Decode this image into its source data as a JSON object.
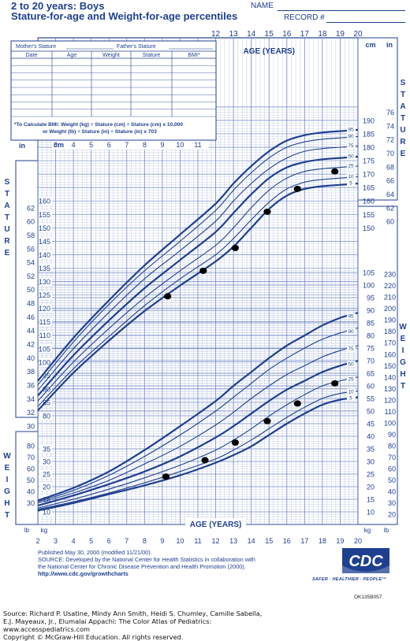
{
  "header": {
    "title_line1": "2 to 20 years: Boys",
    "title_line2": "Stature-for-age and Weight-for-age percentiles",
    "name_label": "NAME",
    "record_label": "RECORD #"
  },
  "record_table": {
    "top_labels": [
      "Mother's Stature",
      "Father's Stature"
    ],
    "columns": [
      "Date",
      "Age",
      "Weight",
      "Stature",
      "BMI*"
    ],
    "bmi_note_line1": "*To Calculate BMI: Weight (kg) ÷ Stature (cm) ÷ Stature (cm) x 10,000",
    "bmi_note_line2": "or Weight (lb) ÷ Stature (in) ÷ Stature (in) x 703"
  },
  "chart_data": {
    "type": "line",
    "title": "Stature-for-age and Weight-for-age percentiles",
    "xlabel": "AGE (YEARS)",
    "x_ticks": [
      2,
      3,
      4,
      5,
      6,
      7,
      8,
      9,
      10,
      11,
      12,
      13,
      14,
      15,
      16,
      17,
      18,
      19,
      20
    ],
    "xlim": [
      2,
      20
    ],
    "percentiles": [
      "5",
      "10",
      "25",
      "50",
      "75",
      "90",
      "95"
    ],
    "stature": {
      "ylabel": "STATURE",
      "units": [
        "cm",
        "in"
      ],
      "ylim_cm": [
        80,
        195
      ],
      "cm_ticks_left": [
        80,
        85,
        90,
        95,
        100,
        105,
        110,
        115,
        120,
        125,
        130,
        135,
        140,
        145,
        150,
        155,
        160
      ],
      "in_ticks_left": [
        30,
        32,
        34,
        36,
        38,
        40,
        42,
        44,
        46,
        48,
        50,
        52,
        54,
        56,
        58,
        60,
        62
      ],
      "cm_ticks_right": [
        150,
        155,
        160,
        165,
        170,
        175,
        180,
        185,
        190
      ],
      "in_ticks_right": [
        60,
        62,
        64,
        66,
        68,
        70,
        72,
        74,
        76
      ],
      "right_label_cm": "cm",
      "right_label_in": "in",
      "left_label_in": "in",
      "left_label_cm": "cm",
      "series": [
        {
          "name": "5",
          "x": [
            2,
            4,
            6,
            8,
            10,
            12,
            13,
            14,
            15,
            16,
            17,
            18,
            19,
            20
          ],
          "values": [
            82,
            96,
            108,
            119,
            128.5,
            137.5,
            143,
            150,
            157,
            162,
            164.5,
            165.5,
            166,
            166.5
          ]
        },
        {
          "name": "10",
          "x": [
            2,
            4,
            6,
            8,
            10,
            12,
            13,
            14,
            15,
            16,
            17,
            18,
            19,
            20
          ],
          "values": [
            83.5,
            97.5,
            109.5,
            121,
            131,
            140,
            146,
            153,
            159.5,
            164.5,
            167,
            168,
            168.5,
            169
          ]
        },
        {
          "name": "25",
          "x": [
            2,
            4,
            6,
            8,
            10,
            12,
            13,
            14,
            15,
            16,
            17,
            18,
            19,
            20
          ],
          "values": [
            85.5,
            100,
            112.5,
            124,
            134,
            143.5,
            150,
            157.5,
            164,
            168.5,
            171,
            172,
            172.5,
            173
          ]
        },
        {
          "name": "50",
          "x": [
            2,
            4,
            6,
            8,
            10,
            12,
            13,
            14,
            15,
            16,
            17,
            18,
            19,
            20
          ],
          "values": [
            87.5,
            102.5,
            115.5,
            127.5,
            138,
            148.5,
            155.5,
            162.5,
            168.5,
            172.5,
            174.5,
            175.5,
            176,
            176.5
          ]
        },
        {
          "name": "75",
          "x": [
            2,
            4,
            6,
            8,
            10,
            12,
            13,
            14,
            15,
            16,
            17,
            18,
            19,
            20
          ],
          "values": [
            89.5,
            105,
            118.5,
            131,
            141.5,
            152.5,
            160,
            166.5,
            172,
            176,
            178.5,
            179.5,
            180,
            180.5
          ]
        },
        {
          "name": "90",
          "x": [
            2,
            4,
            6,
            8,
            10,
            12,
            13,
            14,
            15,
            16,
            17,
            18,
            19,
            20
          ],
          "values": [
            91.5,
            107.5,
            121.5,
            134,
            145,
            156.5,
            164,
            170.5,
            176,
            180,
            182,
            183,
            183.5,
            184
          ]
        },
        {
          "name": "95",
          "x": [
            2,
            4,
            6,
            8,
            10,
            12,
            13,
            14,
            15,
            16,
            17,
            18,
            19,
            20
          ],
          "values": [
            93,
            109,
            123,
            136,
            147.5,
            159,
            166.5,
            173,
            178.5,
            182.5,
            184.5,
            185.5,
            186,
            186.5
          ]
        }
      ],
      "measurements": [
        {
          "age": 9.3,
          "value": 124.5
        },
        {
          "age": 11.3,
          "value": 134
        },
        {
          "age": 13.1,
          "value": 142.5
        },
        {
          "age": 14.9,
          "value": 156
        },
        {
          "age": 16.6,
          "value": 164.5
        },
        {
          "age": 18.7,
          "value": 171
        }
      ]
    },
    "weight": {
      "ylabel": "WEIGHT",
      "units": [
        "kg",
        "lb"
      ],
      "ylim_kg": [
        5,
        105
      ],
      "kg_ticks_left": [
        10,
        15,
        20,
        25,
        30,
        35
      ],
      "lb_ticks_left": [
        30,
        40,
        50,
        60,
        70,
        80
      ],
      "kg_ticks_right": [
        10,
        15,
        20,
        25,
        30,
        35,
        40,
        45,
        50,
        55,
        60,
        65,
        70,
        75,
        80,
        85,
        90,
        95,
        100,
        105
      ],
      "lb_ticks_right": [
        20,
        30,
        40,
        50,
        60,
        70,
        80,
        90,
        100,
        110,
        120,
        130,
        140,
        150,
        160,
        170,
        180,
        190,
        200,
        210,
        220,
        230
      ],
      "left_label_lb": "lb",
      "left_label_kg": "kg",
      "right_label_kg": "kg",
      "right_label_lb": "lb",
      "series": [
        {
          "name": "5",
          "x": [
            2,
            4,
            6,
            8,
            10,
            12,
            13,
            14,
            15,
            16,
            17,
            18,
            19,
            20
          ],
          "values": [
            10.5,
            13.5,
            17,
            20.5,
            24.5,
            29.5,
            32.5,
            36,
            40.5,
            45,
            49,
            52.5,
            54.5,
            55.5
          ]
        },
        {
          "name": "10",
          "x": [
            2,
            4,
            6,
            8,
            10,
            12,
            13,
            14,
            15,
            16,
            17,
            18,
            19,
            20
          ],
          "values": [
            11,
            14,
            17.5,
            21.5,
            26,
            31,
            34.5,
            38.5,
            43,
            47.5,
            51.5,
            55,
            57,
            58
          ]
        },
        {
          "name": "25",
          "x": [
            2,
            4,
            6,
            8,
            10,
            12,
            13,
            14,
            15,
            16,
            17,
            18,
            19,
            20
          ],
          "values": [
            11.5,
            15,
            19,
            23.5,
            28.5,
            34.5,
            38.5,
            43,
            48,
            52.5,
            56.5,
            60,
            62,
            63.5
          ]
        },
        {
          "name": "50",
          "x": [
            2,
            4,
            6,
            8,
            10,
            12,
            13,
            14,
            15,
            16,
            17,
            18,
            19,
            20
          ],
          "values": [
            12.5,
            16.5,
            21,
            26,
            32,
            39.5,
            44,
            49,
            54,
            58.5,
            62,
            65.5,
            68,
            70
          ]
        },
        {
          "name": "75",
          "x": [
            2,
            4,
            6,
            8,
            10,
            12,
            13,
            14,
            15,
            16,
            17,
            18,
            19,
            20
          ],
          "values": [
            13.5,
            17.5,
            22.5,
            29,
            36,
            44.5,
            49.5,
            55,
            60,
            64.5,
            68,
            71.5,
            74,
            76
          ]
        },
        {
          "name": "90",
          "x": [
            2,
            4,
            6,
            8,
            10,
            12,
            13,
            14,
            15,
            16,
            17,
            18,
            19,
            20
          ],
          "values": [
            14,
            18.5,
            24.5,
            32,
            40.5,
            50,
            55.5,
            61,
            66.5,
            71,
            75,
            78.5,
            81,
            83
          ]
        },
        {
          "name": "95",
          "x": [
            2,
            4,
            6,
            8,
            10,
            12,
            13,
            14,
            15,
            16,
            17,
            18,
            19,
            20
          ],
          "values": [
            14.5,
            19.5,
            26,
            34.5,
            44,
            54,
            60,
            65.5,
            71,
            76,
            80,
            84,
            87,
            89
          ]
        }
      ],
      "measurements": [
        {
          "age": 9.2,
          "value": 24
        },
        {
          "age": 11.4,
          "value": 30.5
        },
        {
          "age": 13.1,
          "value": 37.5
        },
        {
          "age": 14.9,
          "value": 46
        },
        {
          "age": 16.6,
          "value": 53
        },
        {
          "age": 18.7,
          "value": 61
        }
      ]
    },
    "grid": true
  },
  "publication": {
    "line1": "Published May 30, 2000 (modified 11/21/00).",
    "line2": "SOURCE: Developed by the National Center for Health Statistics in collaboration with",
    "line3": "the National Center for Chronic Disease Prevention and Health Promotion (2000).",
    "line4": "http://www.cdc.gov/growthcharts"
  },
  "logo": {
    "text": "CDC",
    "slogan": "SAFER · HEALTHIER · PEOPLE™"
  },
  "figure_code": "OK135B057",
  "source_credit": {
    "line1": "Source: Richard P. Usatine, Mindy Ann Smith, Heidi S. Chumley, Camille Sabella,",
    "line2": "E.J. Mayeaux, Jr., Elumalai Appachi: The Color Atlas of Pediatrics:",
    "line3": "www.accesspediatrics.com",
    "line4": "Copyright © McGraw-Hill Education. All rights reserved."
  },
  "colors": {
    "ink": "#1f3f8f",
    "grid_fine": "#a9b7dc",
    "grid_major": "#6f86c4",
    "background": "#ffffff",
    "marker": "#000000"
  }
}
